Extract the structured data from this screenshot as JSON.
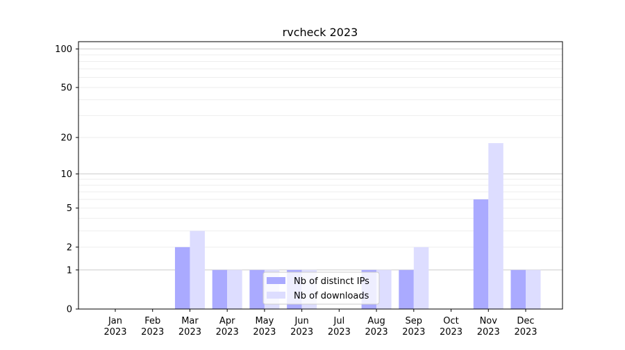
{
  "chart_data": {
    "type": "bar",
    "title": "rvcheck 2023",
    "xlabel": "",
    "ylabel": "",
    "yscale": "log(1+y)",
    "ylim": [
      0,
      114
    ],
    "yticks": [
      0,
      1,
      2,
      5,
      10,
      20,
      50,
      100
    ],
    "categories": [
      "Jan\n2023",
      "Feb\n2023",
      "Mar\n2023",
      "Apr\n2023",
      "May\n2023",
      "Jun\n2023",
      "Jul\n2023",
      "Aug\n2023",
      "Sep\n2023",
      "Oct\n2023",
      "Nov\n2023",
      "Dec\n2023"
    ],
    "series": [
      {
        "name": "Nb of distinct IPs",
        "color": "#aaaaff",
        "values": [
          0,
          0,
          2,
          1,
          1,
          1,
          0,
          1,
          1,
          0,
          6,
          1
        ]
      },
      {
        "name": "Nb of downloads",
        "color": "#ddddff",
        "values": [
          0,
          0,
          3,
          1,
          1,
          1,
          0,
          1,
          2,
          0,
          18,
          1
        ]
      }
    ],
    "grid": true,
    "legend": "lower-center"
  }
}
